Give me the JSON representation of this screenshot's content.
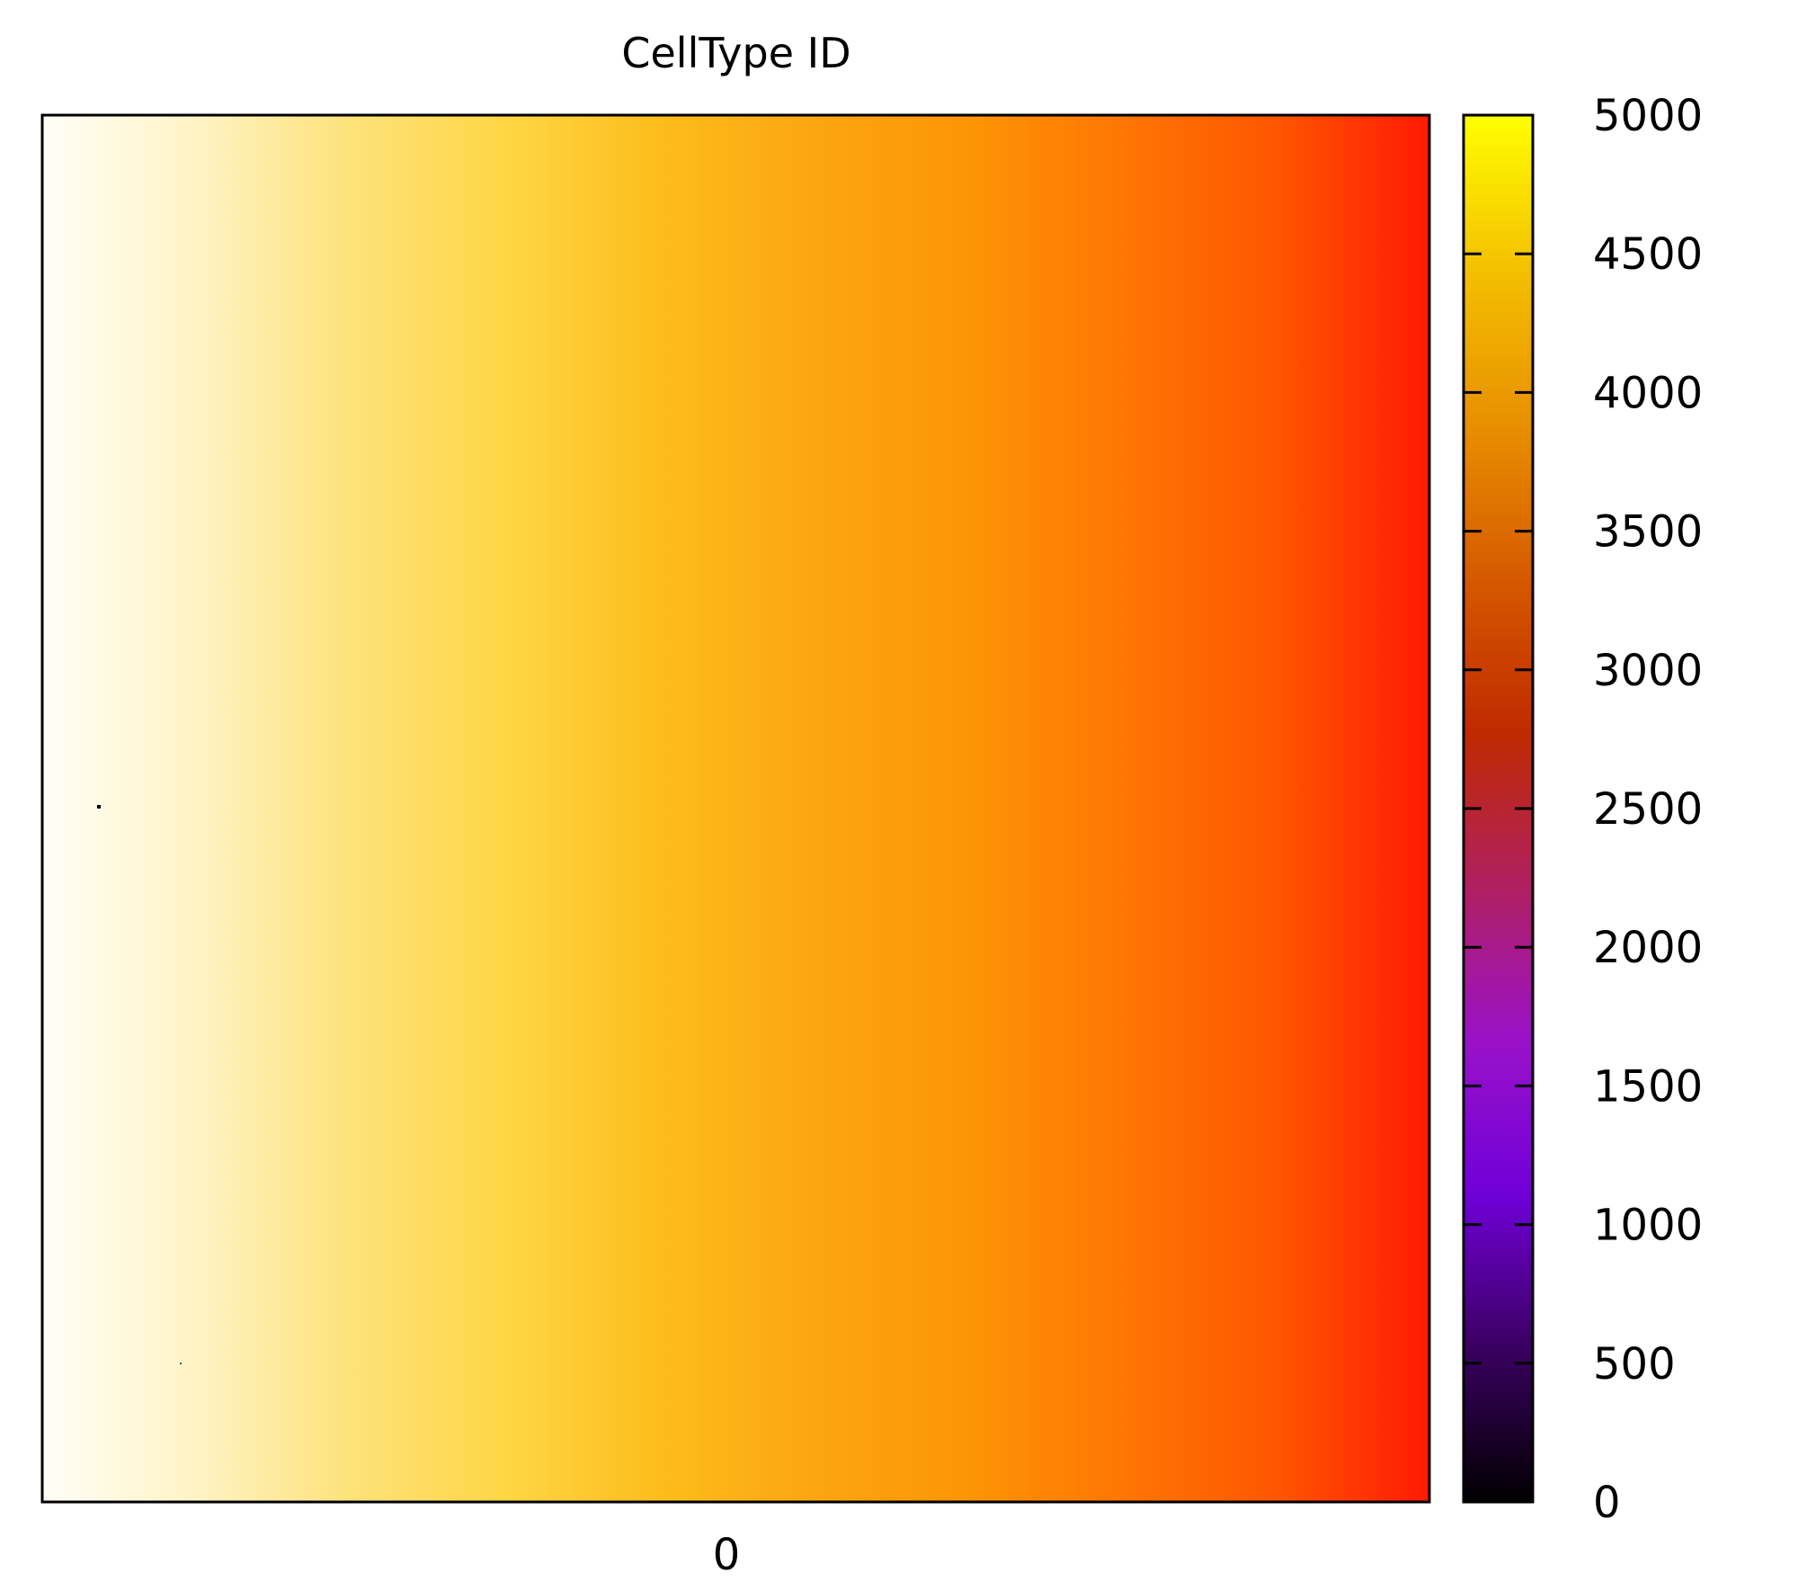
{
  "chart_data": {
    "type": "heatmap",
    "title": "CellType ID",
    "x_tick_labels": [
      "0"
    ],
    "colorbar": {
      "range": [
        0,
        5000
      ],
      "ticks": [
        0,
        500,
        1000,
        1500,
        2000,
        2500,
        3000,
        3500,
        4000,
        4500,
        5000
      ],
      "tick_labels": [
        "0",
        "500",
        "1000",
        "1500",
        "2000",
        "2500",
        "3000",
        "3500",
        "4000",
        "4500",
        "5000"
      ],
      "palette": [
        "#000000",
        "#3a0060",
        "#7000d8",
        "#9a12c8",
        "#b02060",
        "#c02a00",
        "#d65a00",
        "#e89000",
        "#f4c000",
        "#ffff00"
      ]
    },
    "field_gradient_colors": [
      "#fffef8",
      "#fff3c4",
      "#fde27a",
      "#fed645",
      "#fdbd1c",
      "#fca610",
      "#fd9505",
      "#fe7604",
      "#ff5600",
      "#ff1a04"
    ]
  }
}
